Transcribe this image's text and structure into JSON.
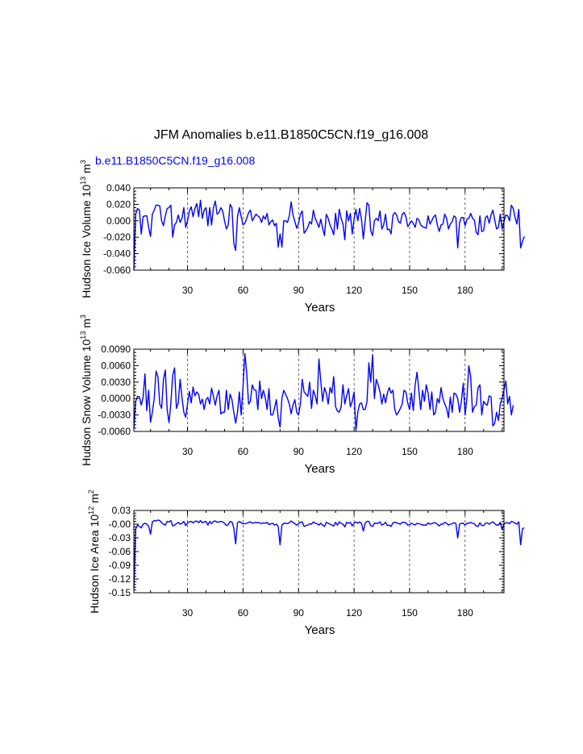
{
  "title": "JFM Anomalies b.e11.B1850C5CN.f19_g16.008",
  "subtitle": "b.e11.B1850C5CN.f19_g16.008",
  "colors": {
    "series": "#0000ff",
    "subtitle": "#0000ff",
    "axis": "#000000",
    "gridline": "#000000"
  },
  "chart_data": [
    {
      "type": "line",
      "id": "ice-volume",
      "ylabel": "Hudson Ice Volume",
      "yunit_scale": "10",
      "yunit_exp": "13",
      "yunit": "m",
      "yunit_pow": "3",
      "xlabel": "Years",
      "xlim": [
        1,
        201
      ],
      "ylim": [
        -0.06,
        0.04
      ],
      "xticks": [
        30,
        60,
        90,
        120,
        150,
        180
      ],
      "xtick_labels": [
        "30",
        "60",
        "90",
        "120",
        "150",
        "180"
      ],
      "yticks": [
        -0.06,
        -0.04,
        -0.02,
        0.0,
        0.02,
        0.04
      ],
      "ytick_labels": [
        "-0.060",
        "-0.040",
        "-0.020",
        "0.000",
        "0.020",
        "0.040"
      ],
      "grid": "vertical dashed at x ticks",
      "x_start": 1,
      "values": [
        -0.06,
        0.008,
        0.015,
        0.013,
        -0.016,
        0.005,
        0.006,
        0.006,
        -0.008,
        -0.019,
        0.008,
        0.013,
        0.019,
        0.019,
        0.018,
        0.0,
        -0.006,
        0.006,
        0.015,
        0.016,
        0.019,
        -0.02,
        -0.005,
        -0.002,
        0.007,
        -0.002,
        0.003,
        0.016,
        -0.008,
        0.0,
        0.012,
        0.017,
        0.005,
        0.015,
        0.021,
        0.005,
        0.025,
        0.003,
        0.013,
        0.016,
        -0.006,
        0.016,
        -0.005,
        0.016,
        0.024,
        0.008,
        0.01,
        0.016,
        0.012,
        0.0,
        -0.01,
        -0.005,
        0.02,
        0.016,
        -0.027,
        -0.036,
        0.005,
        0.016,
        0.005,
        -0.005,
        -0.003,
        0.003,
        0.01,
        0.013,
        0.0,
        0.004,
        0.008,
        0.006,
        0.004,
        -0.002,
        0.006,
        0.002,
        0.009,
        -0.005,
        -0.001,
        0.001,
        -0.006,
        -0.003,
        -0.032,
        -0.016,
        -0.032,
        0.0,
        0.0,
        -0.002,
        0.006,
        0.023,
        0.007,
        -0.001,
        -0.009,
        -0.003,
        0.008,
        0.012,
        -0.015,
        -0.012,
        -0.008,
        -0.001,
        -0.004,
        0.013,
        0.003,
        -0.002,
        -0.008,
        0.002,
        -0.009,
        -0.018,
        0.008,
        0.003,
        -0.005,
        -0.01,
        -0.017,
        0.009,
        -0.01,
        0.014,
        0.003,
        -0.004,
        -0.023,
        0.012,
        0.0,
        0.009,
        -0.016,
        0.002,
        0.014,
        0.0,
        0.015,
        0.002,
        -0.022,
        0.0,
        0.022,
        0.019,
        -0.012,
        -0.018,
        0.0,
        0.003,
        0.0,
        0.012,
        -0.01,
        -0.005,
        0.008,
        -0.011,
        -0.01,
        -0.016,
        0.007,
        0.01,
        0.007,
        -0.001,
        -0.003,
        0.008,
        0.01,
        0.005,
        -0.007,
        -0.004,
        0.0,
        -0.003,
        -0.008,
        0.003,
        0.001,
        -0.005,
        -0.007,
        -0.008,
        -0.009,
        0.006,
        -0.004,
        0.0,
        0.005,
        0.007,
        -0.005,
        -0.013,
        -0.005,
        -0.004,
        0.008,
        0.003,
        -0.01,
        -0.004,
        -0.001,
        0.006,
        0.004,
        -0.033,
        -0.002,
        0.004,
        0.004,
        -0.006,
        0.002,
        0.003,
        0.009,
        0.003,
        0.001,
        -0.014,
        -0.017,
        0.006,
        -0.013,
        -0.012,
        0.004,
        0.006,
        -0.003,
        0.007,
        0.013,
        0.001,
        -0.01,
        -0.008,
        0.008,
        -0.01,
        -0.001,
        0.007,
        0.006,
        0.0,
        0.019,
        0.015,
        0.004,
        -0.004,
        0.014,
        -0.033,
        -0.025,
        -0.019
      ]
    },
    {
      "type": "line",
      "id": "snow-volume",
      "ylabel": "Hudson Snow Volume",
      "yunit_scale": "10",
      "yunit_exp": "13",
      "yunit": "m",
      "yunit_pow": "3",
      "xlabel": "Years",
      "xlim": [
        1,
        201
      ],
      "ylim": [
        -0.006,
        0.009
      ],
      "xticks": [
        30,
        60,
        90,
        120,
        150,
        180
      ],
      "xtick_labels": [
        "30",
        "60",
        "90",
        "120",
        "150",
        "180"
      ],
      "yticks": [
        -0.006,
        -0.003,
        0.0,
        0.003,
        0.006,
        0.009
      ],
      "ytick_labels": [
        "-0.0060",
        "-0.0030",
        "0.0000",
        "0.0030",
        "0.0060",
        "0.0090"
      ],
      "grid": "vertical dashed at x ticks",
      "x_start": 1,
      "values": [
        -0.0055,
        -0.0005,
        0.0004,
        0.0003,
        -0.0012,
        0.0002,
        0.0045,
        -0.0022,
        0.0015,
        -0.0043,
        -0.0025,
        0.0,
        0.005,
        0.004,
        -0.001,
        -0.0018,
        0.0035,
        0.0052,
        -0.002,
        -0.0044,
        -0.0008,
        0.0042,
        0.0056,
        -0.0018,
        -0.0008,
        0.0035,
        0.0002,
        -0.0025,
        -0.0034,
        -0.001,
        0.0013,
        -0.0008,
        0.0021,
        0.0005,
        0.0012,
        0.0008,
        -0.001,
        -0.0001,
        -0.002,
        -0.0002,
        0.0002,
        -0.001,
        0.0019,
        0.0004,
        -0.0012,
        0.0005,
        0.0015,
        -0.0028,
        -0.0025,
        -0.0025,
        0.0015,
        -0.002,
        0.0008,
        -0.0002,
        -0.0025,
        -0.0045,
        -0.0025,
        0.0012,
        -0.003,
        0.0022,
        0.0082,
        0.0045,
        -0.001,
        -0.0005,
        0.0025,
        0.0016,
        0.0015,
        -0.002,
        0.0032,
        0.0,
        0.0015,
        0.0002,
        -0.002,
        0.0018,
        -0.003,
        -0.003,
        -0.0018,
        -0.0002,
        -0.0035,
        -0.0052,
        0.0,
        0.0015,
        0.0008,
        0.0,
        -0.001,
        -0.0028,
        -0.0012,
        -0.0002,
        -0.0025,
        -0.003,
        -0.001,
        0.0035,
        0.0012,
        0.0008,
        0.0004,
        0.003,
        -0.0018,
        0.0015,
        0.0005,
        -0.001,
        0.0072,
        0.0032,
        -0.0005,
        0.002,
        0.001,
        -0.001,
        0.002,
        0.001,
        0.004,
        -0.0015,
        -0.0023,
        -0.0025,
        -0.0015,
        0.0025,
        -0.001,
        0.0005,
        0.0018,
        -0.0015,
        -0.0005,
        0.0012,
        -0.0058,
        -0.0025,
        -0.001,
        -0.0008,
        -0.002,
        -0.002,
        -0.0005,
        0.0065,
        0.003,
        0.008,
        0.0,
        0.0035,
        0.0025,
        0.0012,
        -0.001,
        0.0008,
        -0.0008,
        0.001,
        0.002,
        0.001,
        0.0015,
        -0.002,
        -0.003,
        -0.0025,
        -0.0018,
        -0.001,
        0.0015,
        0.0012,
        -0.0008,
        -0.002,
        0.001,
        -0.0022,
        0.0025,
        0.0048,
        0.0015,
        -0.002,
        0.0015,
        -0.0005,
        0.0025,
        0.001,
        -0.002,
        0.0012,
        -0.003,
        -0.0025,
        0.0,
        -0.0008,
        0.002,
        0.0,
        -0.001,
        -0.0018,
        -0.0035,
        0.0003,
        -0.0025,
        0.001,
        0.0008,
        0.0,
        -0.0025,
        -0.0005,
        0.0028,
        -0.003,
        0.0002,
        0.006,
        0.004,
        -0.0025,
        -0.0015,
        -0.0012,
        0.002,
        0.0025,
        -0.003,
        -0.0005,
        -0.001,
        -0.0012,
        0.0005,
        0.0003,
        -0.005,
        -0.0045,
        -0.0025,
        -0.004,
        -0.001,
        0.0,
        0.0015,
        0.0032,
        -0.001,
        0.0004,
        -0.003,
        -0.0012
      ]
    },
    {
      "type": "line",
      "id": "ice-area",
      "ylabel": "Hudson Ice Area",
      "yunit_scale": "10",
      "yunit_exp": "12",
      "yunit": "m",
      "yunit_pow": "2",
      "xlabel": "Years",
      "xlim": [
        1,
        201
      ],
      "ylim": [
        -0.15,
        0.03
      ],
      "xticks": [
        30,
        60,
        90,
        120,
        150,
        180
      ],
      "xtick_labels": [
        "30",
        "60",
        "90",
        "120",
        "150",
        "180"
      ],
      "yticks": [
        -0.15,
        -0.12,
        -0.09,
        -0.06,
        -0.03,
        0.0,
        0.03
      ],
      "ytick_labels": [
        "-0.15",
        "-0.12",
        "-0.09",
        "-0.06",
        "-0.03",
        "-0.00",
        "0.03"
      ],
      "grid": "vertical dashed at x ticks",
      "x_start": 1,
      "values": [
        -0.14,
        -0.01,
        -0.002,
        -0.005,
        -0.008,
        0.0,
        0.002,
        0.0,
        -0.004,
        -0.022,
        0.005,
        0.008,
        0.007,
        0.009,
        0.008,
        0.003,
        0.0,
        -0.002,
        0.006,
        0.005,
        0.008,
        -0.004,
        -0.002,
        0.001,
        0.004,
        0.0,
        0.002,
        0.006,
        -0.003,
        0.003,
        0.005,
        0.006,
        0.003,
        0.006,
        0.007,
        0.003,
        0.008,
        0.003,
        0.005,
        0.006,
        -0.002,
        0.006,
        0.001,
        0.006,
        0.007,
        0.004,
        0.005,
        0.006,
        0.005,
        0.002,
        -0.003,
        -0.001,
        0.006,
        0.005,
        -0.008,
        -0.043,
        0.003,
        0.006,
        0.003,
        0.001,
        0.001,
        0.002,
        0.004,
        0.005,
        0.002,
        0.003,
        0.004,
        0.003,
        0.003,
        0.001,
        0.003,
        0.002,
        0.004,
        -0.001,
        0.001,
        0.002,
        -0.002,
        0.0,
        -0.005,
        -0.045,
        -0.002,
        0.002,
        0.002,
        0.001,
        0.003,
        0.007,
        0.004,
        0.001,
        -0.002,
        0.001,
        0.004,
        0.005,
        -0.005,
        -0.003,
        -0.002,
        0.001,
        0.0,
        0.005,
        0.002,
        0.001,
        -0.002,
        0.002,
        -0.002,
        -0.005,
        0.004,
        0.002,
        0.0,
        -0.002,
        -0.004,
        0.004,
        -0.002,
        0.005,
        0.002,
        0.0,
        -0.006,
        0.004,
        0.002,
        0.004,
        -0.004,
        0.002,
        0.005,
        0.002,
        0.005,
        0.002,
        -0.015,
        0.002,
        0.006,
        0.006,
        -0.003,
        -0.005,
        0.002,
        0.002,
        0.002,
        0.005,
        -0.002,
        0.0,
        0.004,
        -0.003,
        -0.002,
        -0.005,
        0.003,
        0.004,
        0.003,
        0.001,
        0.0,
        0.004,
        0.004,
        0.003,
        -0.002,
        -0.001,
        0.002,
        0.0,
        -0.002,
        0.002,
        0.001,
        0.0,
        -0.002,
        -0.002,
        -0.002,
        0.003,
        0.0,
        0.001,
        0.003,
        0.003,
        0.0,
        -0.004,
        0.0,
        0.0,
        0.004,
        0.002,
        -0.002,
        0.0,
        0.001,
        0.003,
        0.002,
        -0.03,
        0.0,
        0.002,
        0.002,
        -0.002,
        0.002,
        0.002,
        0.004,
        0.002,
        0.001,
        -0.004,
        -0.005,
        0.003,
        -0.003,
        -0.003,
        0.002,
        0.003,
        0.0,
        0.003,
        0.005,
        0.001,
        -0.002,
        -0.002,
        0.004,
        -0.012,
        0.0,
        0.003,
        0.003,
        0.001,
        0.006,
        0.005,
        0.002,
        0.0,
        0.005,
        -0.045,
        -0.01,
        -0.008
      ]
    }
  ]
}
